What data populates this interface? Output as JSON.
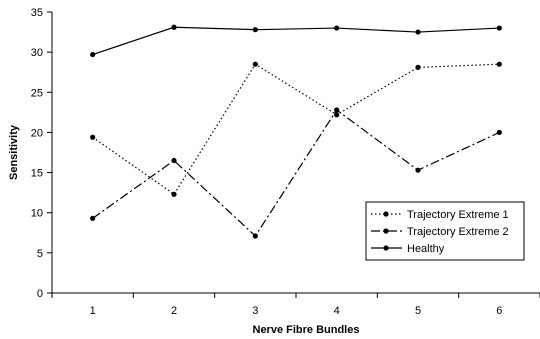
{
  "chart_data": {
    "type": "line",
    "title": "",
    "xlabel": "Nerve Fibre Bundles",
    "ylabel": "Sensitivity",
    "categories": [
      "1",
      "2",
      "3",
      "4",
      "5",
      "6"
    ],
    "ylim": [
      0,
      35
    ],
    "yticks": [
      "0",
      "5",
      "10",
      "15",
      "20",
      "25",
      "30",
      "35"
    ],
    "grid": false,
    "legend_position": "bottom-right",
    "series": [
      {
        "name": "Trajectory Extreme 1",
        "style": "dotted",
        "values": [
          19.4,
          12.3,
          28.5,
          22.2,
          28.1,
          28.5
        ]
      },
      {
        "name": "Trajectory Extreme 2",
        "style": "dash-dot",
        "values": [
          9.3,
          16.5,
          7.1,
          22.8,
          15.3,
          20.0
        ]
      },
      {
        "name": "Healthy",
        "style": "solid",
        "values": [
          29.7,
          33.1,
          32.8,
          33.0,
          32.5,
          33.0
        ]
      }
    ],
    "colors": {
      "line": "#000000",
      "background": "#ffffff"
    }
  }
}
